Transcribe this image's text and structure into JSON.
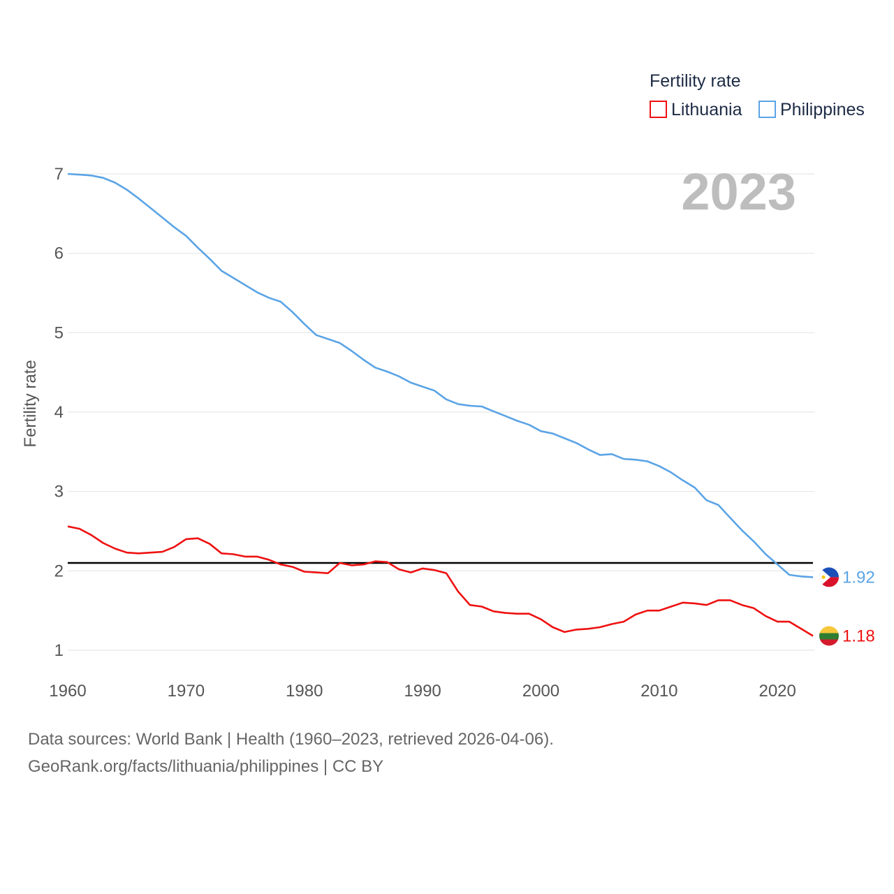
{
  "colors": {
    "lithuania": "#ee1111",
    "philippines": "#5ba4e5",
    "grid": "#e6e6e6",
    "reference": "#000000"
  },
  "legend": {
    "title": "Fertility rate",
    "items": [
      {
        "name": "Lithuania",
        "color": "#ee1111"
      },
      {
        "name": "Philippines",
        "color": "#5ba4e5"
      }
    ]
  },
  "year_label": "2023",
  "end_labels": {
    "philippines": "1.92",
    "lithuania": "1.18"
  },
  "flags": {
    "philippines": "philippines-flag-icon",
    "lithuania": "lithuania-flag-icon"
  },
  "footer": {
    "line1": "Data sources: World Bank | Health (1960–2023, retrieved 2026-04-06).",
    "line2": "GeoRank.org/facts/lithuania/philippines | CC BY"
  },
  "chart_data": {
    "type": "line",
    "title": "",
    "xlabel": "",
    "ylabel": "Fertility rate",
    "xlim": [
      1960,
      2023
    ],
    "ylim": [
      1,
      7
    ],
    "x_ticks": [
      1960,
      1970,
      1980,
      1990,
      2000,
      2010,
      2020
    ],
    "y_ticks": [
      1,
      2,
      3,
      4,
      5,
      6,
      7
    ],
    "reference_line": 2.1,
    "x": [
      1960,
      1961,
      1962,
      1963,
      1964,
      1965,
      1966,
      1967,
      1968,
      1969,
      1970,
      1971,
      1972,
      1973,
      1974,
      1975,
      1976,
      1977,
      1978,
      1979,
      1980,
      1981,
      1982,
      1983,
      1984,
      1985,
      1986,
      1987,
      1988,
      1989,
      1990,
      1991,
      1992,
      1993,
      1994,
      1995,
      1996,
      1997,
      1998,
      1999,
      2000,
      2001,
      2002,
      2003,
      2004,
      2005,
      2006,
      2007,
      2008,
      2009,
      2010,
      2011,
      2012,
      2013,
      2014,
      2015,
      2016,
      2017,
      2018,
      2019,
      2020,
      2021,
      2022,
      2023
    ],
    "series": [
      {
        "name": "Lithuania",
        "color": "#ee1111",
        "values": [
          2.56,
          2.53,
          2.45,
          2.35,
          2.28,
          2.23,
          2.22,
          2.23,
          2.24,
          2.3,
          2.4,
          2.41,
          2.34,
          2.22,
          2.21,
          2.18,
          2.18,
          2.14,
          2.08,
          2.05,
          1.99,
          1.98,
          1.97,
          2.1,
          2.07,
          2.08,
          2.12,
          2.11,
          2.02,
          1.98,
          2.03,
          2.01,
          1.97,
          1.74,
          1.57,
          1.55,
          1.49,
          1.47,
          1.46,
          1.46,
          1.39,
          1.29,
          1.23,
          1.26,
          1.27,
          1.29,
          1.33,
          1.36,
          1.45,
          1.5,
          1.5,
          1.55,
          1.6,
          1.59,
          1.57,
          1.63,
          1.63,
          1.57,
          1.53,
          1.43,
          1.36,
          1.36,
          1.27,
          1.18
        ]
      },
      {
        "name": "Philippines",
        "color": "#5ba4e5",
        "values": [
          7.0,
          6.99,
          6.98,
          6.95,
          6.89,
          6.8,
          6.69,
          6.57,
          6.45,
          6.33,
          6.22,
          6.07,
          5.93,
          5.78,
          5.69,
          5.6,
          5.51,
          5.44,
          5.39,
          5.26,
          5.11,
          4.97,
          4.92,
          4.87,
          4.77,
          4.66,
          4.56,
          4.51,
          4.45,
          4.37,
          4.32,
          4.27,
          4.16,
          4.1,
          4.08,
          4.07,
          4.01,
          3.95,
          3.89,
          3.84,
          3.76,
          3.73,
          3.67,
          3.61,
          3.53,
          3.46,
          3.47,
          3.41,
          3.4,
          3.38,
          3.32,
          3.24,
          3.14,
          3.05,
          2.89,
          2.83,
          2.67,
          2.51,
          2.37,
          2.21,
          2.08,
          1.95,
          1.93,
          1.92
        ]
      }
    ]
  }
}
